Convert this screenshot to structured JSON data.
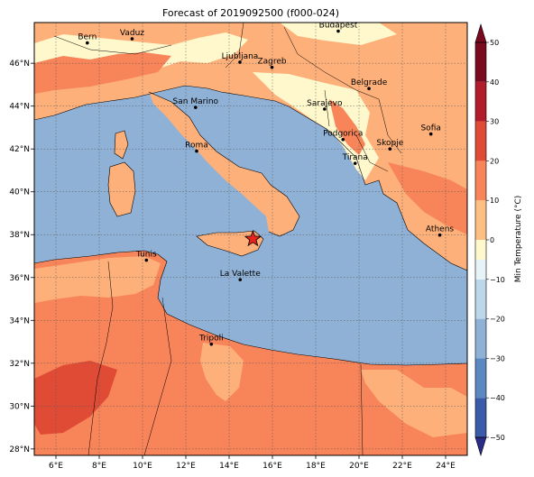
{
  "title": "Forecast of 2019092500 (f000-024)",
  "map": {
    "lon_range": [
      5,
      25
    ],
    "lat_range": [
      27.7,
      47.9
    ],
    "lon_ticks": [
      6,
      8,
      10,
      12,
      14,
      16,
      18,
      20,
      22,
      24
    ],
    "lat_ticks": [
      28,
      30,
      32,
      34,
      36,
      38,
      40,
      42,
      44,
      46
    ],
    "lon_tick_labels": [
      "6°E",
      "8°E",
      "10°E",
      "12°E",
      "14°E",
      "16°E",
      "18°E",
      "20°E",
      "22°E",
      "24°E"
    ],
    "lat_tick_labels": [
      "28°N",
      "30°N",
      "32°N",
      "34°N",
      "36°N",
      "38°N",
      "40°N",
      "42°N",
      "44°N",
      "46°N"
    ],
    "gridlines": true,
    "sea_color": "#8fb1d6",
    "marker": {
      "name": "star",
      "lon": 15.1,
      "lat": 37.8,
      "color": "#e8221c"
    }
  },
  "cities": [
    {
      "name": "Bern",
      "lon": 7.45,
      "lat": 46.95
    },
    {
      "name": "Vaduz",
      "lon": 9.52,
      "lat": 47.14
    },
    {
      "name": "Budapest",
      "lon": 19.04,
      "lat": 47.5
    },
    {
      "name": "Ljubljana",
      "lon": 14.5,
      "lat": 46.05
    },
    {
      "name": "Zagreb",
      "lon": 15.98,
      "lat": 45.81
    },
    {
      "name": "Belgrade",
      "lon": 20.46,
      "lat": 44.82
    },
    {
      "name": "San Marino",
      "lon": 12.45,
      "lat": 43.94
    },
    {
      "name": "Sarajevo",
      "lon": 18.41,
      "lat": 43.86
    },
    {
      "name": "Sofia",
      "lon": 23.32,
      "lat": 42.7
    },
    {
      "name": "Podgorica",
      "lon": 19.26,
      "lat": 42.44
    },
    {
      "name": "Skopje",
      "lon": 21.43,
      "lat": 42.0
    },
    {
      "name": "Roma",
      "lon": 12.5,
      "lat": 41.9
    },
    {
      "name": "Tirana",
      "lon": 19.82,
      "lat": 41.33
    },
    {
      "name": "Athens",
      "lon": 23.73,
      "lat": 37.98
    },
    {
      "name": "Tunis",
      "lon": 10.18,
      "lat": 36.81
    },
    {
      "name": "La Valette",
      "lon": 14.51,
      "lat": 35.9
    },
    {
      "name": "Tripoli",
      "lon": 13.18,
      "lat": 32.89
    }
  ],
  "colorbar": {
    "label": "Min Temperature (°C)",
    "min": -50,
    "max": 50,
    "ticks": [
      50,
      40,
      30,
      20,
      10,
      0,
      -10,
      -20,
      -30,
      -40,
      -50
    ],
    "tick_labels": [
      "50",
      "40",
      "30",
      "20",
      "10",
      "0",
      "−10",
      "−20",
      "−30",
      "−40",
      "−50"
    ],
    "colors": [
      "#2b2b8a",
      "#3a5aaa",
      "#5b88c0",
      "#8fb1d6",
      "#bcd6ea",
      "#e6f4f8",
      "#fff8cc",
      "#fdbf84",
      "#f8845a",
      "#e04b36",
      "#b21d2b",
      "#7a0a1e"
    ],
    "boundaries": [
      -50,
      -40,
      -30,
      -20,
      -10,
      -5,
      0,
      10,
      20,
      30,
      40,
      50
    ]
  }
}
